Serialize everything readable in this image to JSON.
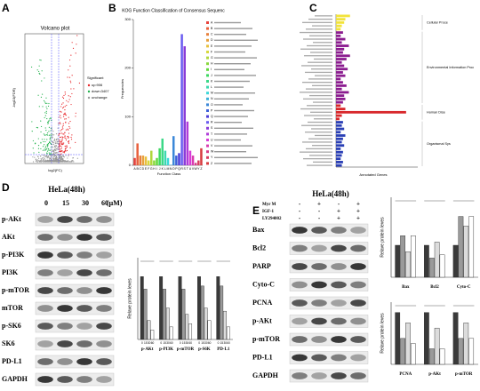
{
  "panels": {
    "a": "A",
    "b": "B",
    "c": "C",
    "d": "D",
    "e": "E"
  },
  "volcano": {
    "title": "Volcano plot",
    "x_label": "log2(FC)",
    "y_label": "-log10(FDR)",
    "legend_title": "Significant",
    "legend": [
      "up:906",
      "down:3407",
      "unchange"
    ]
  },
  "kog": {
    "type": "bar",
    "title": "KOG Function Classification of Consensus Sequenc",
    "x_label": "Function Class",
    "y_label": "Frequencies",
    "categories": [
      "A",
      "B",
      "C",
      "D",
      "E",
      "F",
      "G",
      "H",
      "I",
      "J",
      "K",
      "L",
      "M",
      "N",
      "O",
      "P",
      "Q",
      "R",
      "S",
      "T",
      "U",
      "V",
      "W",
      "Y",
      "Z"
    ],
    "values": [
      15,
      45,
      20,
      20,
      18,
      10,
      30,
      10,
      15,
      35,
      55,
      30,
      15,
      1,
      60,
      20,
      25,
      270,
      245,
      90,
      30,
      20,
      5,
      10,
      35
    ],
    "colors": [
      "#e8413c",
      "#e8603c",
      "#e8803c",
      "#e8a03c",
      "#e8c03c",
      "#d8d83c",
      "#b0d83c",
      "#88d83c",
      "#60d83c",
      "#3cd860",
      "#3cd888",
      "#3cd8b0",
      "#3cd8d8",
      "#3cb0d8",
      "#3c88d8",
      "#3c60d8",
      "#4c3cd8",
      "#6a5cf0",
      "#8a3cd8",
      "#b03cd8",
      "#d83cd8",
      "#d83cb0",
      "#d83c88",
      "#d83c60",
      "#d83c40"
    ],
    "ylim": [
      0,
      300
    ],
    "yticks": [
      0,
      100,
      200,
      300
    ]
  },
  "kegg": {
    "type": "bar",
    "x_label": "Annotated Genes",
    "xlim": [
      0,
      350
    ],
    "groups": [
      {
        "name": "Cellular Proce",
        "color": "#f2e33a",
        "values": [
          60,
          40,
          35,
          25,
          20
        ]
      },
      {
        "name": "Environmental Information Proc",
        "color": "#8b1c8f",
        "values": [
          30,
          20,
          40,
          25,
          55,
          35,
          30,
          60,
          45,
          25,
          35,
          50,
          30,
          40,
          20,
          30,
          45,
          25,
          55,
          35,
          40,
          30
        ]
      },
      {
        "name": "Human Dise",
        "color": "#d8262a",
        "values": [
          20,
          40,
          300,
          25,
          15
        ]
      },
      {
        "name": "Organismal Sys",
        "color": "#2a3fb5",
        "values": [
          30,
          25,
          35,
          20,
          40,
          30,
          25,
          35,
          20,
          30,
          25,
          20,
          30,
          25
        ]
      }
    ]
  },
  "blot_d": {
    "title": "HeLa(48h)",
    "doses": [
      "0",
      "15",
      "30",
      "60"
    ],
    "unit": "(μM)",
    "proteins": [
      "p-AKt",
      "AKt",
      "p-PI3K",
      "PI3K",
      "p-mTOR",
      "mTOR",
      "p-SK6",
      "SK6",
      "PD-L1",
      "GAPDH"
    ]
  },
  "chart_d": {
    "type": "bar",
    "y_label": "Relave protein leves",
    "categories": [
      "p-AKt",
      "p-PI3K",
      "p-mTOR",
      "p-S6K",
      "PD-L1"
    ],
    "series": [
      {
        "name": "0",
        "color": "#3a3a3a",
        "values": [
          1,
          1,
          1,
          1,
          1
        ]
      },
      {
        "name": "15",
        "color": "#9a9a9a",
        "values": [
          0.8,
          0.8,
          0.8,
          0.85,
          0.85
        ]
      },
      {
        "name": "30",
        "color": "#dcdcdc",
        "values": [
          0.3,
          0.5,
          0.4,
          0.5,
          0.45
        ]
      },
      {
        "name": "60",
        "color": "#ffffff",
        "values": [
          0.15,
          0.2,
          0.25,
          0.3,
          0.2
        ]
      }
    ],
    "ylim": [
      0,
      1.3
    ]
  },
  "blot_e": {
    "title": "HeLa(48h)",
    "conditions": [
      {
        "name": "Myr M",
        "signs": [
          "-",
          "+",
          "-",
          "+"
        ]
      },
      {
        "name": "IGF-1",
        "signs": [
          "-",
          "-",
          "+",
          "+"
        ]
      },
      {
        "name": "LY294002",
        "signs": [
          "-",
          "-",
          "+",
          "+"
        ]
      }
    ],
    "proteins": [
      "Bax",
      "Bcl2",
      "PARP",
      "Cyto-C",
      "PCNA",
      "p-AKt",
      "p-mTOR",
      "PD-L1",
      "GAPDH"
    ]
  },
  "chart_e1": {
    "type": "bar",
    "y_label": "Relave protein leves",
    "categories": [
      "Bax",
      "Bcl2",
      "Cyto-C"
    ],
    "series": [
      {
        "name": "1",
        "color": "#3a3a3a",
        "values": [
          1,
          1,
          1
        ]
      },
      {
        "name": "2",
        "color": "#9a9a9a",
        "values": [
          1.3,
          0.6,
          1.9
        ]
      },
      {
        "name": "3",
        "color": "#dcdcdc",
        "values": [
          0.8,
          1.1,
          1.6
        ]
      },
      {
        "name": "4",
        "color": "#ffffff",
        "values": [
          1.3,
          0.7,
          1.9
        ]
      }
    ],
    "ylim": [
      0,
      2.5
    ]
  },
  "chart_e2": {
    "type": "bar",
    "y_label": "Relave protein leves",
    "categories": [
      "PCNA",
      "p-AKt",
      "p-mTOR"
    ],
    "series": [
      {
        "name": "1",
        "color": "#3a3a3a",
        "values": [
          1,
          1,
          1
        ]
      },
      {
        "name": "2",
        "color": "#9a9a9a",
        "values": [
          0.5,
          0.3,
          0.5
        ]
      },
      {
        "name": "3",
        "color": "#dcdcdc",
        "values": [
          0.8,
          0.7,
          0.8
        ]
      },
      {
        "name": "4",
        "color": "#ffffff",
        "values": [
          0.4,
          0.3,
          0.5
        ]
      }
    ],
    "ylim": [
      0,
      1.2
    ]
  }
}
